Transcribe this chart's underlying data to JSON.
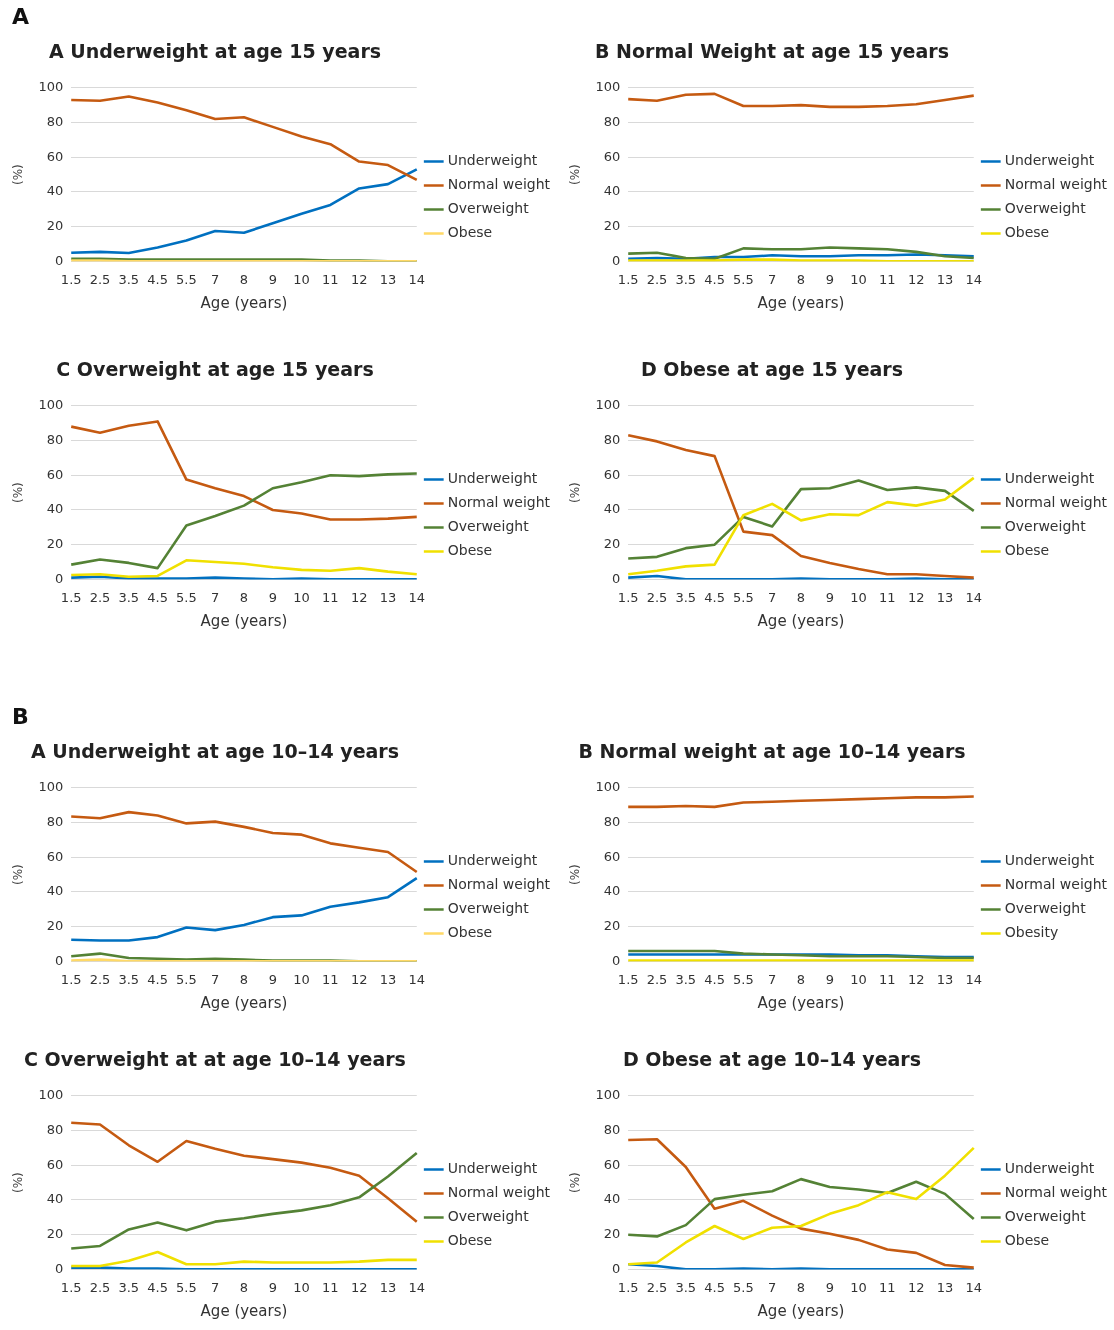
{
  "chart_data": [
    {
      "type": "line",
      "title": "A  Underweight at age 15 years",
      "annotations": [
        "A"
      ],
      "xlabel": "Age (years)",
      "ylabel": "(%)",
      "categories": [
        "1.5",
        "2.5",
        "3.5",
        "4.5",
        "5.5",
        "7",
        "8",
        "9",
        "10",
        "11",
        "12",
        "13",
        "14"
      ],
      "ylim": [
        0,
        100
      ],
      "yticks": [
        0,
        20,
        40,
        60,
        80,
        100
      ],
      "grid": "y",
      "legend": "right",
      "marker": "none",
      "series": [
        {
          "name": "Underweight",
          "color": "#0070c0",
          "values": [
            5,
            5.5,
            4.8,
            8,
            12,
            17.5,
            16.5,
            22,
            27.5,
            32.5,
            42,
            44.5,
            53
          ]
        },
        {
          "name": "Normal weight",
          "color": "#c55a11",
          "values": [
            93,
            92.5,
            95,
            91.5,
            87,
            82,
            83,
            77.5,
            72,
            67.5,
            57.5,
            55.5,
            47
          ]
        },
        {
          "name": "Overweight",
          "color": "#548235",
          "values": [
            1.5,
            1.5,
            1,
            1,
            1,
            1,
            1,
            1,
            1,
            0.5,
            0.5,
            0,
            0
          ]
        },
        {
          "name": "Obese",
          "color": "#ffd966",
          "values": [
            0.5,
            0.5,
            0,
            0,
            0,
            0,
            0,
            0,
            0,
            0,
            0,
            0,
            0
          ]
        }
      ]
    },
    {
      "type": "line",
      "title": "B  Normal Weight at age 15 years",
      "xlabel": "Age (years)",
      "ylabel": "(%)",
      "categories": [
        "1.5",
        "2.5",
        "3.5",
        "4.5",
        "5.5",
        "7",
        "8",
        "9",
        "10",
        "11",
        "12",
        "13",
        "14"
      ],
      "ylim": [
        0,
        100
      ],
      "yticks": [
        0,
        20,
        40,
        60,
        80,
        100
      ],
      "grid": "y",
      "legend": "right",
      "marker": "none",
      "series": [
        {
          "name": "Underweight",
          "color": "#0070c0",
          "values": [
            1.5,
            2,
            1.5,
            2.5,
            2.5,
            3.5,
            3,
            3,
            3.5,
            3.5,
            4,
            3.5,
            3
          ]
        },
        {
          "name": "Normal weight",
          "color": "#c55a11",
          "values": [
            93.5,
            92.5,
            96,
            96.5,
            89.5,
            89.5,
            90,
            89,
            89,
            89.5,
            90.5,
            93,
            95.5
          ]
        },
        {
          "name": "Overweight",
          "color": "#548235",
          "values": [
            4.5,
            5,
            2,
            1.5,
            7.5,
            7,
            7,
            8,
            7.5,
            7,
            5.5,
            3,
            2
          ]
        },
        {
          "name": "Obese",
          "color": "#f0e000",
          "values": [
            0.5,
            0.5,
            0.5,
            0.5,
            1,
            1,
            0.5,
            0.5,
            0.5,
            0,
            0,
            0,
            0
          ]
        }
      ]
    },
    {
      "type": "line",
      "title": "C  Overweight at age 15 years",
      "xlabel": "Age (years)",
      "ylabel": "(%)",
      "categories": [
        "1.5",
        "2.5",
        "3.5",
        "4.5",
        "5.5",
        "7",
        "8",
        "9",
        "10",
        "11",
        "12",
        "13",
        "14"
      ],
      "ylim": [
        0,
        100
      ],
      "yticks": [
        0,
        20,
        40,
        60,
        80,
        100
      ],
      "grid": "y",
      "legend": "right",
      "marker": "none",
      "series": [
        {
          "name": "Underweight",
          "color": "#0070c0",
          "values": [
            1,
            1.5,
            0.5,
            0.5,
            0.5,
            1,
            0.5,
            0,
            0.5,
            0,
            0,
            0,
            0
          ]
        },
        {
          "name": "Normal weight",
          "color": "#c55a11",
          "values": [
            88,
            84.5,
            88.5,
            91,
            57.5,
            52.5,
            48,
            40,
            38,
            34.5,
            34.5,
            35,
            36
          ]
        },
        {
          "name": "Overweight",
          "color": "#548235",
          "values": [
            8.5,
            11.5,
            9.5,
            6.5,
            31,
            36.5,
            42.5,
            52.5,
            56,
            60,
            59.5,
            60.5,
            61
          ]
        },
        {
          "name": "Obese",
          "color": "#f0e000",
          "values": [
            2.5,
            3,
            1.5,
            2,
            11,
            10,
            9,
            7,
            5.5,
            5,
            6.5,
            4.5,
            3
          ]
        }
      ]
    },
    {
      "type": "line",
      "title": "D  Obese at age 15 years",
      "xlabel": "Age (years)",
      "ylabel": "(%)",
      "categories": [
        "1.5",
        "2.5",
        "3.5",
        "4.5",
        "5.5",
        "7",
        "8",
        "9",
        "10",
        "11",
        "12",
        "13",
        "14"
      ],
      "ylim": [
        0,
        100
      ],
      "yticks": [
        0,
        20,
        40,
        60,
        80,
        100
      ],
      "grid": "y",
      "legend": "right",
      "marker": "none",
      "series": [
        {
          "name": "Underweight",
          "color": "#0070c0",
          "values": [
            1,
            2,
            0,
            0,
            0,
            0,
            0.5,
            0,
            0,
            0,
            0.5,
            0,
            0
          ]
        },
        {
          "name": "Normal weight",
          "color": "#c55a11",
          "values": [
            83,
            79.5,
            74.5,
            71,
            27.5,
            25.5,
            13.5,
            9.5,
            6,
            3,
            3,
            2,
            1
          ]
        },
        {
          "name": "Overweight",
          "color": "#548235",
          "values": [
            12,
            13,
            18,
            20,
            36,
            30.5,
            52,
            52.5,
            57,
            51.5,
            53,
            51,
            39.5
          ]
        },
        {
          "name": "Obese",
          "color": "#f0e000",
          "values": [
            3,
            5,
            7.5,
            8.5,
            37,
            43.5,
            34,
            37.5,
            37,
            44.5,
            42.5,
            46,
            58.5
          ]
        }
      ]
    },
    {
      "type": "line",
      "title": "A  Underweight at age 10–14 years",
      "annotations": [
        "B"
      ],
      "xlabel": "Age (years)",
      "ylabel": "(%)",
      "categories": [
        "1.5",
        "2.5",
        "3.5",
        "4.5",
        "5.5",
        "7",
        "8",
        "9",
        "10",
        "11",
        "12",
        "13",
        "14"
      ],
      "ylim": [
        0,
        100
      ],
      "yticks": [
        0,
        20,
        40,
        60,
        80,
        100
      ],
      "grid": "y",
      "legend": "right",
      "marker": "none",
      "series": [
        {
          "name": "Underweight",
          "color": "#0070c0",
          "values": [
            12.5,
            12,
            12,
            14,
            19.5,
            18,
            21,
            25.5,
            26.5,
            31.5,
            34,
            37,
            48
          ]
        },
        {
          "name": "Normal weight",
          "color": "#c55a11",
          "values": [
            83.5,
            82.5,
            86,
            84,
            79.5,
            80.5,
            77.5,
            74,
            73,
            68,
            65.5,
            63,
            51.5
          ]
        },
        {
          "name": "Overweight",
          "color": "#548235",
          "values": [
            3,
            4.5,
            2,
            1.5,
            1,
            1.5,
            1,
            0.5,
            0.5,
            0.5,
            0,
            0,
            0
          ]
        },
        {
          "name": "Obese",
          "color": "#ffd966",
          "values": [
            0.5,
            1,
            0,
            0,
            0,
            0,
            0,
            0,
            0,
            0,
            0,
            0,
            0
          ]
        }
      ]
    },
    {
      "type": "line",
      "title": "B  Normal weight at age 10–14 years",
      "xlabel": "Age (years)",
      "ylabel": "(%)",
      "categories": [
        "1.5",
        "2.5",
        "3.5",
        "4.5",
        "5.5",
        "7",
        "8",
        "9",
        "10",
        "11",
        "12",
        "13",
        "14"
      ],
      "ylim": [
        0,
        100
      ],
      "yticks": [
        0,
        20,
        40,
        60,
        80,
        100
      ],
      "grid": "y",
      "legend": "right",
      "marker": "none",
      "series": [
        {
          "name": "Underweight",
          "color": "#0070c0",
          "values": [
            4,
            4,
            4,
            4,
            4,
            4,
            4,
            4,
            3.5,
            3.5,
            3,
            2.5,
            2.5
          ]
        },
        {
          "name": "Normal weight",
          "color": "#c55a11",
          "values": [
            89,
            89,
            89.5,
            89,
            91.5,
            92,
            92.5,
            93,
            93.5,
            94,
            94.5,
            94.5,
            95
          ]
        },
        {
          "name": "Overweight",
          "color": "#548235",
          "values": [
            6,
            6,
            6,
            6,
            4.5,
            4,
            3.5,
            3,
            3,
            3,
            2.5,
            2,
            2
          ]
        },
        {
          "name": "Obesity",
          "color": "#f0e000",
          "values": [
            0.5,
            0.5,
            0.5,
            0.5,
            0.5,
            0.5,
            0.5,
            0.5,
            0.5,
            0.5,
            0.5,
            0.5,
            0.5
          ]
        }
      ]
    },
    {
      "type": "line",
      "title": "C  Overweight at at age 10–14 years",
      "xlabel": "Age (years)",
      "ylabel": "(%)",
      "categories": [
        "1.5",
        "2.5",
        "3.5",
        "4.5",
        "5.5",
        "7",
        "8",
        "9",
        "10",
        "11",
        "12",
        "13",
        "14"
      ],
      "ylim": [
        0,
        100
      ],
      "yticks": [
        0,
        20,
        40,
        60,
        80,
        100
      ],
      "grid": "y",
      "legend": "right",
      "marker": "none",
      "series": [
        {
          "name": "Underweight",
          "color": "#0070c0",
          "values": [
            1,
            1,
            0.5,
            0.5,
            0,
            0,
            0,
            0,
            0,
            0,
            0,
            0,
            0
          ]
        },
        {
          "name": "Normal weight",
          "color": "#c55a11",
          "values": [
            84.5,
            83.5,
            71.5,
            62,
            74,
            69.5,
            65.5,
            63.5,
            61.5,
            58.5,
            54,
            41,
            27.5
          ]
        },
        {
          "name": "Overweight",
          "color": "#548235",
          "values": [
            12,
            13.5,
            23,
            27,
            22.5,
            27.5,
            29.5,
            32,
            34,
            37,
            41.5,
            53.5,
            67
          ]
        },
        {
          "name": "Obese",
          "color": "#f0e000",
          "values": [
            2,
            2,
            5,
            10,
            3,
            3,
            4.5,
            4,
            4,
            4,
            4.5,
            5.5,
            5.5
          ]
        }
      ]
    },
    {
      "type": "line",
      "title": "D  Obese at age 10–14 years",
      "xlabel": "Age (years)",
      "ylabel": "(%)",
      "categories": [
        "1.5",
        "2.5",
        "3.5",
        "4.5",
        "5.5",
        "7",
        "8",
        "9",
        "10",
        "11",
        "12",
        "13",
        "14"
      ],
      "ylim": [
        0,
        100
      ],
      "yticks": [
        0,
        20,
        40,
        60,
        80,
        100
      ],
      "grid": "y",
      "legend": "right",
      "marker": "none",
      "series": [
        {
          "name": "Underweight",
          "color": "#0070c0",
          "values": [
            3,
            2,
            0,
            0,
            0.5,
            0,
            0.5,
            0,
            0,
            0,
            0,
            0,
            0
          ]
        },
        {
          "name": "Normal weight",
          "color": "#c55a11",
          "values": [
            74.5,
            75,
            59,
            35,
            39.5,
            31,
            23.5,
            20.5,
            17,
            11.5,
            9.5,
            2.5,
            1
          ]
        },
        {
          "name": "Overweight",
          "color": "#548235",
          "values": [
            20,
            19,
            25.5,
            40.5,
            43,
            45,
            52,
            47.5,
            46,
            44,
            50.5,
            43.5,
            29
          ]
        },
        {
          "name": "Obese",
          "color": "#f0e000",
          "values": [
            3,
            4,
            15.5,
            25,
            17.5,
            24,
            25,
            32,
            37,
            44.5,
            40.5,
            54,
            70
          ]
        }
      ]
    }
  ]
}
